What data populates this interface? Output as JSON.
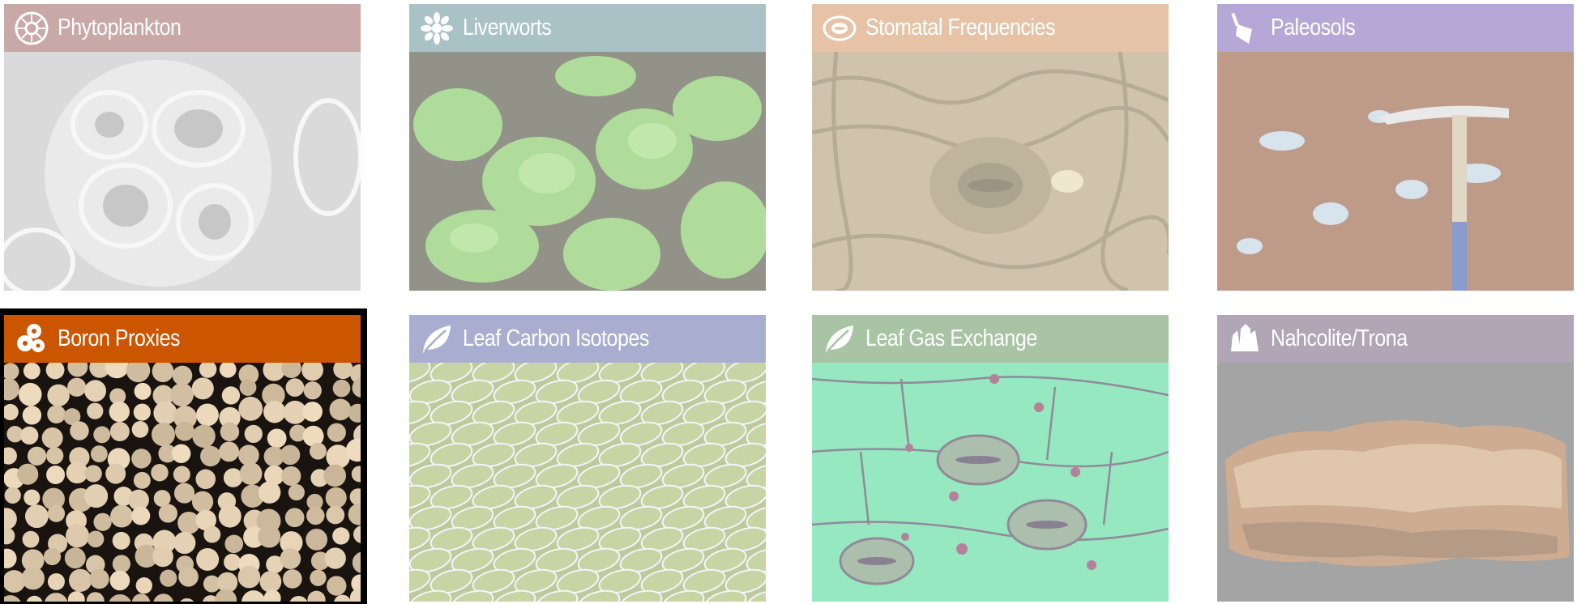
{
  "tiles": [
    {
      "title": "Phytoplankton",
      "icon": "coccolith-icon",
      "header_color": "#c9a8a8",
      "selected": false
    },
    {
      "title": "Liverworts",
      "icon": "liverwort-icon",
      "header_color": "#a8c2c6",
      "selected": false
    },
    {
      "title": "Stomatal Frequencies",
      "icon": "stomata-icon",
      "header_color": "#e6c3a6",
      "selected": false
    },
    {
      "title": "Paleosols",
      "icon": "trowel-icon",
      "header_color": "#b6a8d6",
      "selected": false
    },
    {
      "title": "Boron Proxies",
      "icon": "foraminifera-icon",
      "header_color": "#cc5500",
      "selected": true
    },
    {
      "title": "Leaf Carbon Isotopes",
      "icon": "leaf-icon",
      "header_color": "#a9aed0",
      "selected": false
    },
    {
      "title": "Leaf Gas Exchange",
      "icon": "leaf-icon",
      "header_color": "#a8c4a4",
      "selected": false
    },
    {
      "title": "Nahcolite/Trona",
      "icon": "crystal-icon",
      "header_color": "#b0a6b6",
      "selected": false
    }
  ]
}
